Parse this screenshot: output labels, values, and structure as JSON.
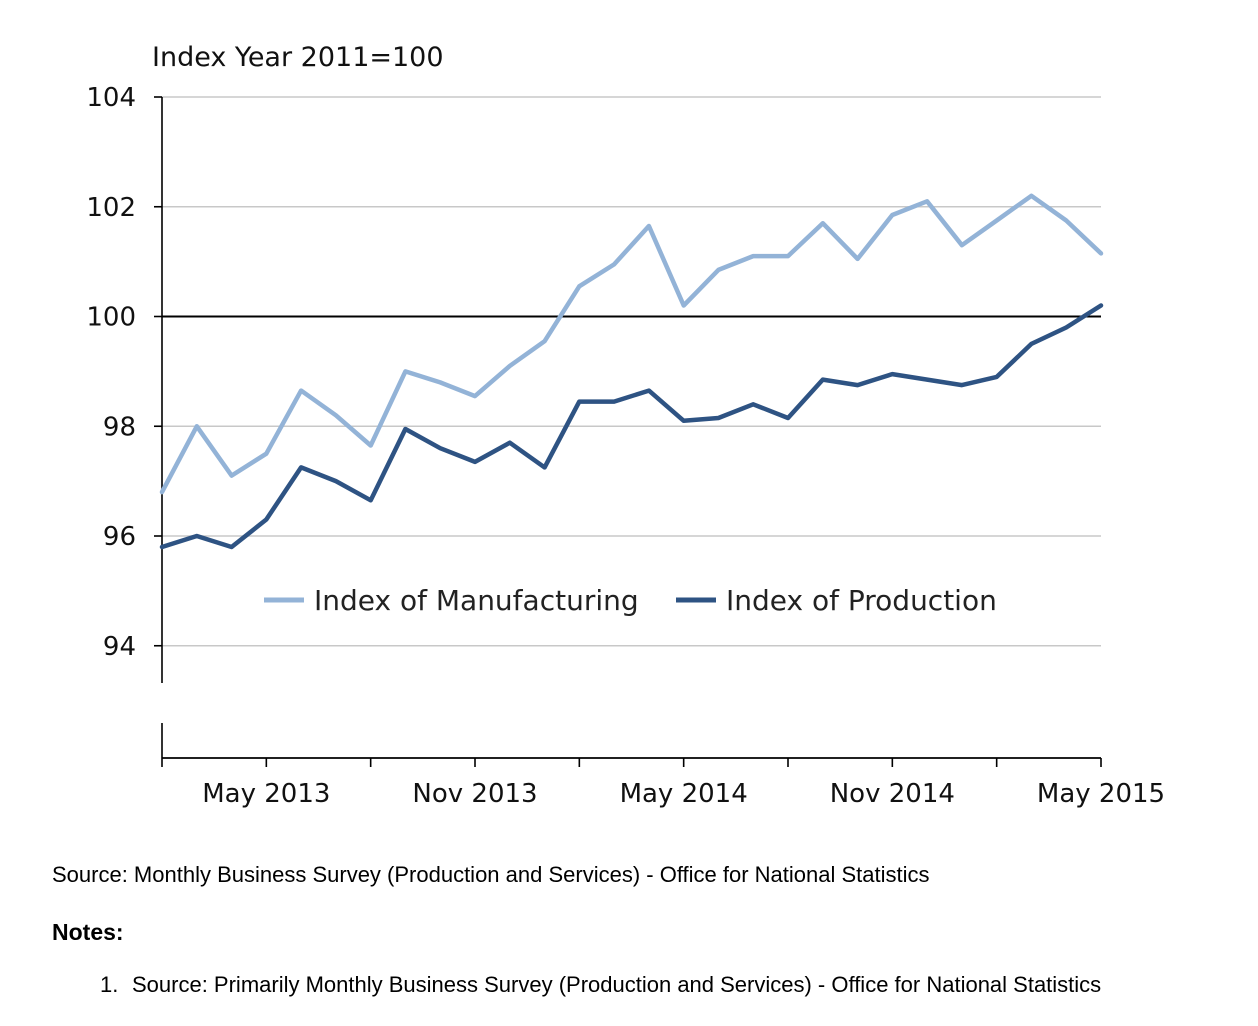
{
  "chart_data": {
    "type": "line",
    "unit_label": "Index Year 2011=100",
    "x": [
      "Feb 2013",
      "Mar 2013",
      "Apr 2013",
      "May 2013",
      "Jun 2013",
      "Jul 2013",
      "Aug 2013",
      "Sep 2013",
      "Oct 2013",
      "Nov 2013",
      "Dec 2013",
      "Jan 2014",
      "Feb 2014",
      "Mar 2014",
      "Apr 2014",
      "May 2014",
      "Jun 2014",
      "Jul 2014",
      "Aug 2014",
      "Sep 2014",
      "Oct 2014",
      "Nov 2014",
      "Dec 2014",
      "Jan 2015",
      "Feb 2015",
      "Mar 2015",
      "Apr 2015",
      "May 2015"
    ],
    "x_tick_labels": [
      "May 2013",
      "Nov 2013",
      "May 2014",
      "Nov 2014",
      "May 2015"
    ],
    "y_ticks": [
      "94",
      "96",
      "98",
      "100",
      "102",
      "104"
    ],
    "ylim": [
      93,
      104
    ],
    "reference_line": 100,
    "grid": true,
    "legend_position": "inside-bottom",
    "series": [
      {
        "name": "Index of Manufacturing",
        "color": "#93B3D7",
        "values": [
          96.8,
          98.0,
          97.1,
          97.5,
          98.65,
          98.2,
          97.65,
          99.0,
          98.8,
          98.55,
          99.1,
          99.55,
          100.55,
          100.95,
          101.65,
          100.2,
          100.85,
          101.1,
          101.1,
          101.7,
          101.05,
          101.85,
          102.1,
          101.3,
          101.75,
          102.2,
          101.75,
          101.15
        ]
      },
      {
        "name": "Index of Production",
        "color": "#2E5383",
        "values": [
          95.8,
          96.0,
          95.8,
          96.3,
          97.25,
          97.0,
          96.65,
          97.95,
          97.6,
          97.35,
          97.7,
          97.25,
          98.45,
          98.45,
          98.65,
          98.1,
          98.15,
          98.4,
          98.15,
          98.85,
          98.75,
          98.95,
          98.85,
          98.75,
          98.9,
          99.5,
          99.8,
          100.2
        ]
      }
    ]
  },
  "footer": {
    "source": "Source: Monthly Business Survey (Production and Services) - Office for National Statistics",
    "notes_heading": "Notes:",
    "notes": [
      {
        "num": "1.",
        "text": "Source: Primarily Monthly Business Survey (Production and Services) - Office for National Statistics"
      }
    ]
  }
}
